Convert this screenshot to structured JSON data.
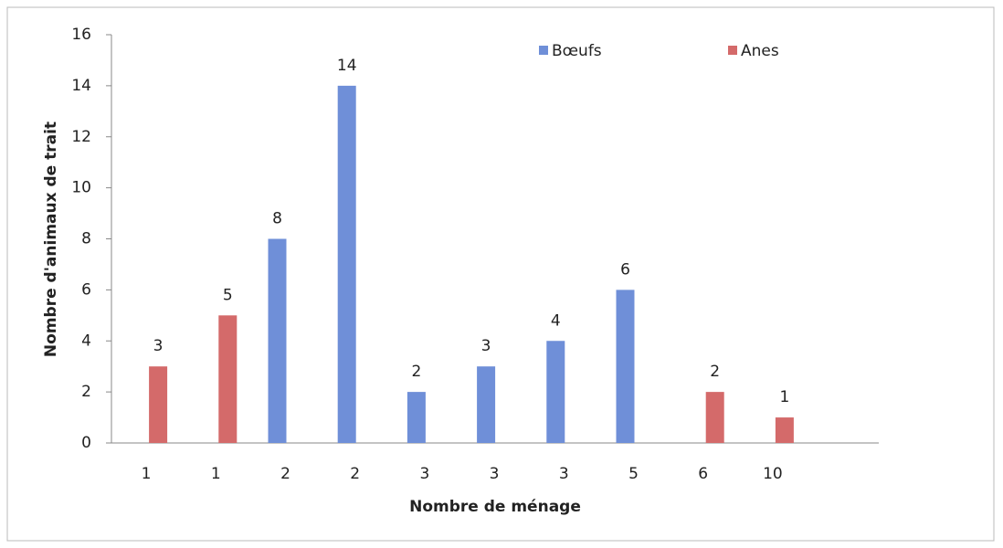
{
  "chart_data": {
    "type": "bar",
    "xlabel": "Nombre de ménage",
    "ylabel": "Nombre d'animaux de trait",
    "categories": [
      "1",
      "1",
      "2",
      "2",
      "3",
      "3",
      "3",
      "5",
      "6",
      "10"
    ],
    "series": [
      {
        "name": "Bœufs",
        "color": "#6f8fd8",
        "values": [
          null,
          null,
          8,
          14,
          2,
          3,
          4,
          6,
          null,
          null
        ]
      },
      {
        "name": "Anes",
        "color": "#d46a6a",
        "values": [
          3,
          5,
          null,
          null,
          null,
          null,
          null,
          null,
          2,
          1
        ]
      }
    ],
    "ylim": [
      0,
      16
    ],
    "yticks": [
      0,
      2,
      4,
      6,
      8,
      10,
      12,
      14,
      16
    ],
    "legend": "top-right",
    "grid": false
  }
}
